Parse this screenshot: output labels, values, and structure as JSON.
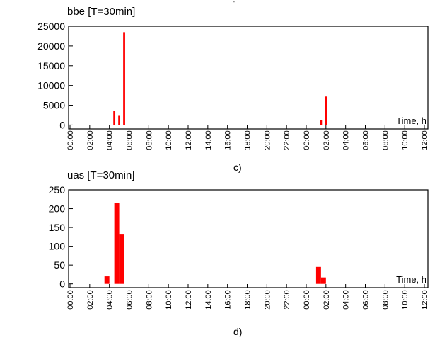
{
  "top_mark": "'",
  "chart_data": [
    {
      "type": "bar",
      "title": "bbe [T=30min]",
      "xlabel": "Time, h",
      "panel_label": "c)",
      "x_ticks": [
        "00:00",
        "02:00",
        "04:00",
        "06:00",
        "08:00",
        "10:00",
        "12:00",
        "14:00",
        "16:00",
        "18:00",
        "20:00",
        "22:00",
        "00:00",
        "02:00",
        "04:00",
        "06:00",
        "08:00",
        "10:00",
        "12:00"
      ],
      "ylim": [
        -1000,
        25000
      ],
      "y_ticks": [
        0,
        5000,
        10000,
        15000,
        20000,
        25000
      ],
      "y_tick_labels": [
        "0",
        "5000",
        "10000",
        "15000",
        "20000",
        "25000"
      ],
      "bars": [
        {
          "x_hours": 4.5,
          "width_hours": 0.2,
          "value": 3500
        },
        {
          "x_hours": 5.0,
          "width_hours": 0.2,
          "value": 2500
        },
        {
          "x_hours": 5.5,
          "width_hours": 0.2,
          "value": 23500
        },
        {
          "x_hours": 25.5,
          "width_hours": 0.2,
          "value": 1200
        },
        {
          "x_hours": 26.0,
          "width_hours": 0.2,
          "value": 7200
        }
      ],
      "bar_color": "#ff0000"
    },
    {
      "type": "bar",
      "title": "uas [T=30min]",
      "xlabel": "Time, h",
      "panel_label": "d)",
      "x_ticks": [
        "00:00",
        "02:00",
        "04:00",
        "06:00",
        "08:00",
        "10:00",
        "12:00",
        "14:00",
        "16:00",
        "18:00",
        "20:00",
        "22:00",
        "00:00",
        "02:00",
        "04:00",
        "06:00",
        "08:00",
        "10:00",
        "12:00"
      ],
      "ylim": [
        -10,
        250
      ],
      "y_ticks": [
        0,
        50,
        100,
        150,
        200,
        250
      ],
      "y_tick_labels": [
        "0",
        "50",
        "100",
        "150",
        "200",
        "250"
      ],
      "bars": [
        {
          "x_hours": 3.75,
          "width_hours": 0.5,
          "value": 20
        },
        {
          "x_hours": 4.75,
          "width_hours": 0.5,
          "value": 215
        },
        {
          "x_hours": 5.25,
          "width_hours": 0.5,
          "value": 133
        },
        {
          "x_hours": 25.25,
          "width_hours": 0.5,
          "value": 45
        },
        {
          "x_hours": 25.75,
          "width_hours": 0.5,
          "value": 17
        }
      ],
      "bar_color": "#ff0000"
    }
  ]
}
